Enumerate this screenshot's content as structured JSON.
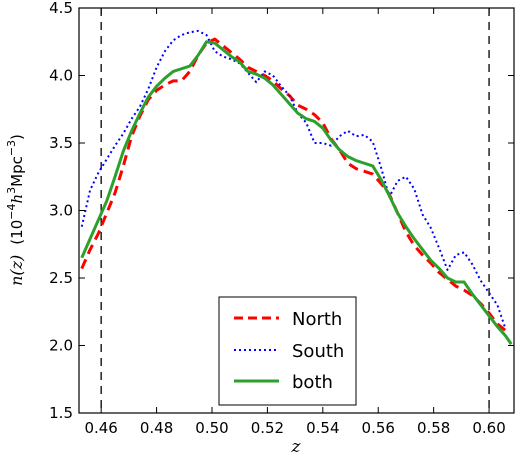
{
  "chart_data": {
    "type": "line",
    "title": "",
    "xlabel": "z",
    "ylabel_main": "n(z)",
    "ylabel_unit": "(10",
    "ylabel_unit_exp": "−4",
    "ylabel_unit_h": "h",
    "ylabel_unit_h_exp": "3",
    "ylabel_unit_mpc": "Mpc",
    "ylabel_unit_mpc_exp": "−3",
    "ylabel_unit_close": ")",
    "xlim": [
      0.452,
      0.609
    ],
    "ylim": [
      1.5,
      4.5
    ],
    "xticks": [
      0.46,
      0.48,
      0.5,
      0.52,
      0.54,
      0.56,
      0.58,
      0.6
    ],
    "xtick_labels": [
      "0.46",
      "0.48",
      "0.50",
      "0.52",
      "0.54",
      "0.56",
      "0.58",
      "0.60"
    ],
    "yticks": [
      1.5,
      2.0,
      2.5,
      3.0,
      3.5,
      4.0,
      4.5
    ],
    "ytick_labels": [
      "1.5",
      "2.0",
      "2.5",
      "3.0",
      "3.5",
      "4.0",
      "4.5"
    ],
    "vlines": [
      0.46,
      0.6
    ],
    "legend_position": "bottom-center",
    "series": [
      {
        "name": "North",
        "color": "#ff0000",
        "style": "dashed",
        "x": [
          0.453,
          0.456,
          0.459,
          0.462,
          0.465,
          0.468,
          0.471,
          0.474,
          0.477,
          0.48,
          0.483,
          0.486,
          0.489,
          0.492,
          0.495,
          0.498,
          0.501,
          0.504,
          0.507,
          0.51,
          0.513,
          0.516,
          0.519,
          0.522,
          0.525,
          0.528,
          0.531,
          0.534,
          0.537,
          0.54,
          0.543,
          0.546,
          0.549,
          0.552,
          0.555,
          0.558,
          0.561,
          0.564,
          0.567,
          0.57,
          0.573,
          0.576,
          0.579,
          0.582,
          0.585,
          0.588,
          0.591,
          0.594,
          0.597,
          0.6,
          0.603,
          0.606
        ],
        "y": [
          2.57,
          2.71,
          2.83,
          2.98,
          3.13,
          3.33,
          3.55,
          3.7,
          3.82,
          3.89,
          3.93,
          3.96,
          3.96,
          4.03,
          4.15,
          4.24,
          4.27,
          4.22,
          4.17,
          4.12,
          4.06,
          4.03,
          4.0,
          3.96,
          3.9,
          3.85,
          3.78,
          3.75,
          3.71,
          3.65,
          3.53,
          3.45,
          3.35,
          3.31,
          3.29,
          3.27,
          3.2,
          3.12,
          2.98,
          2.84,
          2.74,
          2.67,
          2.61,
          2.54,
          2.49,
          2.44,
          2.41,
          2.37,
          2.31,
          2.24,
          2.16,
          2.11
        ]
      },
      {
        "name": "South",
        "color": "#0000ff",
        "style": "dotted",
        "x": [
          0.453,
          0.456,
          0.459,
          0.462,
          0.465,
          0.468,
          0.471,
          0.474,
          0.477,
          0.48,
          0.483,
          0.486,
          0.489,
          0.492,
          0.495,
          0.498,
          0.501,
          0.504,
          0.507,
          0.51,
          0.513,
          0.516,
          0.519,
          0.522,
          0.525,
          0.528,
          0.531,
          0.534,
          0.537,
          0.54,
          0.543,
          0.546,
          0.549,
          0.552,
          0.555,
          0.558,
          0.561,
          0.564,
          0.567,
          0.57,
          0.573,
          0.576,
          0.579,
          0.582,
          0.585,
          0.588,
          0.591,
          0.594,
          0.597,
          0.6,
          0.603,
          0.606
        ],
        "y": [
          2.88,
          3.15,
          3.28,
          3.38,
          3.48,
          3.57,
          3.68,
          3.77,
          3.9,
          4.06,
          4.18,
          4.26,
          4.3,
          4.32,
          4.33,
          4.3,
          4.18,
          4.14,
          4.12,
          4.09,
          4.02,
          3.95,
          4.03,
          4.0,
          3.92,
          3.85,
          3.72,
          3.65,
          3.5,
          3.5,
          3.48,
          3.55,
          3.59,
          3.55,
          3.56,
          3.51,
          3.32,
          3.1,
          3.22,
          3.25,
          3.16,
          2.97,
          2.87,
          2.72,
          2.56,
          2.67,
          2.69,
          2.6,
          2.48,
          2.39,
          2.3,
          2.12
        ]
      },
      {
        "name": "both",
        "color": "#2ca02c",
        "style": "solid",
        "x": [
          0.453,
          0.456,
          0.459,
          0.462,
          0.465,
          0.468,
          0.471,
          0.474,
          0.477,
          0.48,
          0.483,
          0.486,
          0.489,
          0.492,
          0.495,
          0.498,
          0.501,
          0.504,
          0.507,
          0.51,
          0.513,
          0.516,
          0.519,
          0.522,
          0.525,
          0.528,
          0.531,
          0.534,
          0.537,
          0.54,
          0.543,
          0.546,
          0.549,
          0.552,
          0.555,
          0.558,
          0.561,
          0.564,
          0.567,
          0.57,
          0.573,
          0.576,
          0.579,
          0.582,
          0.585,
          0.588,
          0.591,
          0.594,
          0.597,
          0.6,
          0.603,
          0.606,
          0.608
        ],
        "y": [
          2.65,
          2.79,
          2.93,
          3.07,
          3.25,
          3.44,
          3.59,
          3.72,
          3.84,
          3.92,
          3.98,
          4.03,
          4.05,
          4.07,
          4.15,
          4.25,
          4.24,
          4.19,
          4.14,
          4.1,
          4.03,
          4.01,
          3.98,
          3.93,
          3.86,
          3.79,
          3.72,
          3.68,
          3.66,
          3.61,
          3.52,
          3.45,
          3.4,
          3.37,
          3.35,
          3.33,
          3.23,
          3.11,
          2.98,
          2.88,
          2.79,
          2.71,
          2.63,
          2.57,
          2.5,
          2.47,
          2.47,
          2.38,
          2.3,
          2.22,
          2.14,
          2.07,
          2.01
        ]
      }
    ]
  }
}
